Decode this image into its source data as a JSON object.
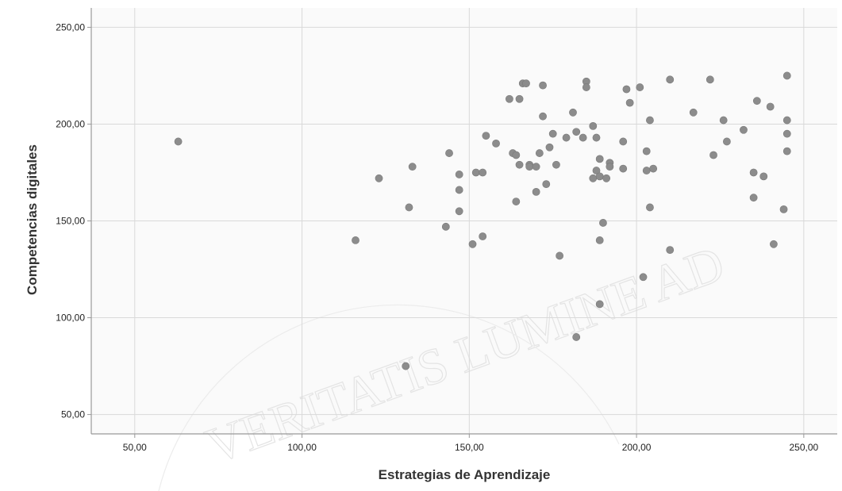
{
  "chart_data": {
    "type": "scatter",
    "xlabel": "Estrategias de Aprendizaje",
    "ylabel": "Competencias digitales",
    "xlim": [
      37,
      260
    ],
    "ylim": [
      40,
      260
    ],
    "x_ticks": [
      "50,00",
      "100,00",
      "150,00",
      "200,00",
      "250,00"
    ],
    "x_tick_values": [
      50,
      100,
      150,
      200,
      250
    ],
    "y_ticks": [
      "250,00",
      "200,00",
      "150,00",
      "100,00",
      "50,00"
    ],
    "y_tick_values": [
      250,
      200,
      150,
      100,
      50
    ],
    "grid": true,
    "legend": "none",
    "colors": {
      "point": "#8c8c8c",
      "grid": "#d9d9d9",
      "plot_background": "#fafafa",
      "axis": "#999999"
    },
    "watermark": "VERITATIS LUMINE AD",
    "points": [
      [
        63,
        191
      ],
      [
        116,
        140
      ],
      [
        123,
        172
      ],
      [
        131,
        75
      ],
      [
        132,
        157
      ],
      [
        133,
        178
      ],
      [
        143,
        147
      ],
      [
        144,
        185
      ],
      [
        147,
        174
      ],
      [
        147,
        166
      ],
      [
        147,
        155
      ],
      [
        151,
        138
      ],
      [
        152,
        175
      ],
      [
        154,
        175
      ],
      [
        154,
        142
      ],
      [
        155,
        194
      ],
      [
        158,
        190
      ],
      [
        162,
        213
      ],
      [
        163,
        185
      ],
      [
        164,
        184
      ],
      [
        164,
        160
      ],
      [
        165,
        213
      ],
      [
        165,
        179
      ],
      [
        166,
        221
      ],
      [
        167,
        221
      ],
      [
        168,
        179
      ],
      [
        168,
        178
      ],
      [
        170,
        178
      ],
      [
        170,
        165
      ],
      [
        171,
        185
      ],
      [
        172,
        220
      ],
      [
        172,
        204
      ],
      [
        173,
        169
      ],
      [
        174,
        188
      ],
      [
        175,
        195
      ],
      [
        176,
        179
      ],
      [
        177,
        132
      ],
      [
        179,
        193
      ],
      [
        181,
        206
      ],
      [
        182,
        196
      ],
      [
        182,
        90
      ],
      [
        184,
        193
      ],
      [
        185,
        222
      ],
      [
        185,
        219
      ],
      [
        187,
        199
      ],
      [
        187,
        172
      ],
      [
        188,
        193
      ],
      [
        188,
        176
      ],
      [
        189,
        182
      ],
      [
        189,
        173
      ],
      [
        189,
        140
      ],
      [
        189,
        107
      ],
      [
        190,
        149
      ],
      [
        191,
        172
      ],
      [
        192,
        180
      ],
      [
        192,
        178
      ],
      [
        196,
        191
      ],
      [
        196,
        177
      ],
      [
        197,
        218
      ],
      [
        198,
        211
      ],
      [
        201,
        219
      ],
      [
        202,
        121
      ],
      [
        203,
        186
      ],
      [
        203,
        176
      ],
      [
        204,
        202
      ],
      [
        204,
        157
      ],
      [
        205,
        177
      ],
      [
        210,
        223
      ],
      [
        210,
        135
      ],
      [
        217,
        206
      ],
      [
        222,
        223
      ],
      [
        223,
        184
      ],
      [
        226,
        202
      ],
      [
        227,
        191
      ],
      [
        232,
        197
      ],
      [
        235,
        175
      ],
      [
        235,
        162
      ],
      [
        236,
        212
      ],
      [
        238,
        173
      ],
      [
        240,
        209
      ],
      [
        241,
        138
      ],
      [
        244,
        156
      ],
      [
        245,
        225
      ],
      [
        245,
        202
      ],
      [
        245,
        195
      ],
      [
        245,
        186
      ]
    ]
  }
}
